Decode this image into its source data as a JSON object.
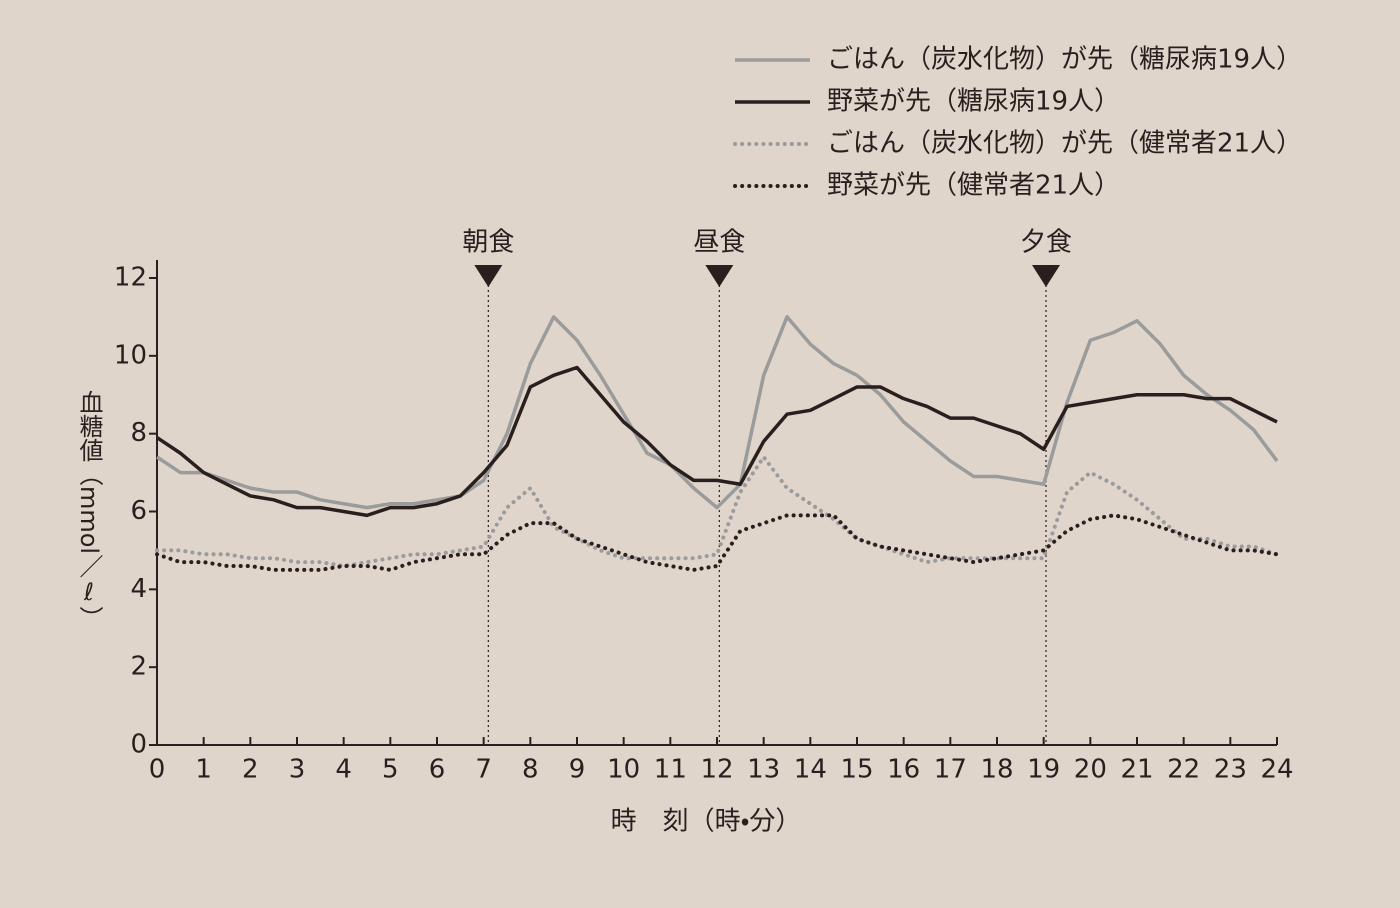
{
  "chart_data": {
    "type": "line",
    "x_label": "時　刻（時・分）",
    "y_label": "血糖値（mmol／ℓ）",
    "x": [
      0,
      0.5,
      1,
      1.5,
      2,
      2.5,
      3,
      3.5,
      4,
      4.5,
      5,
      5.5,
      6,
      6.5,
      7,
      7.5,
      8,
      8.5,
      9,
      9.5,
      10,
      10.5,
      11,
      11.5,
      12,
      12.5,
      13,
      13.5,
      14,
      14.5,
      15,
      15.5,
      16,
      16.5,
      17,
      17.5,
      18,
      18.5,
      19,
      19.5,
      20,
      20.5,
      21,
      21.5,
      22,
      22.5,
      23,
      23.5,
      24
    ],
    "xlim": [
      0,
      24
    ],
    "xticks": [
      0,
      1,
      2,
      3,
      4,
      5,
      6,
      7,
      8,
      9,
      10,
      11,
      12,
      13,
      14,
      15,
      16,
      17,
      18,
      19,
      20,
      21,
      22,
      23,
      24
    ],
    "ylim": [
      0,
      12
    ],
    "yticks": [
      0,
      2,
      4,
      6,
      8,
      10,
      12
    ],
    "legend": "top-right",
    "annotations": [
      {
        "x": 7.1,
        "label": "朝食"
      },
      {
        "x": 12.05,
        "label": "昼食"
      },
      {
        "x": 19.05,
        "label": "夕食"
      }
    ],
    "series": [
      {
        "name": "ごはん（炭水化物）が先（糖尿病19人）",
        "color": "#9a9b9b",
        "style": "solid",
        "values": [
          7.4,
          7.0,
          7.0,
          6.8,
          6.6,
          6.5,
          6.5,
          6.3,
          6.2,
          6.1,
          6.2,
          6.2,
          6.3,
          6.4,
          6.8,
          8.0,
          9.8,
          11.0,
          10.4,
          9.5,
          8.5,
          7.5,
          7.2,
          6.6,
          6.1,
          6.7,
          9.5,
          11.0,
          10.3,
          9.8,
          9.5,
          9.0,
          8.3,
          7.8,
          7.3,
          6.9,
          6.9,
          6.8,
          6.7,
          8.8,
          10.4,
          10.6,
          10.9,
          10.3,
          9.5,
          9.0,
          8.6,
          8.1,
          7.3
        ]
      },
      {
        "name": "野菜が先（糖尿病19人）",
        "color": "#2a1f1f",
        "style": "solid",
        "values": [
          7.9,
          7.5,
          7.0,
          6.7,
          6.4,
          6.3,
          6.1,
          6.1,
          6.0,
          5.9,
          6.1,
          6.1,
          6.2,
          6.4,
          7.0,
          7.7,
          9.2,
          9.5,
          9.7,
          9.0,
          8.3,
          7.8,
          7.2,
          6.8,
          6.8,
          6.7,
          7.8,
          8.5,
          8.6,
          8.9,
          9.2,
          9.2,
          8.9,
          8.7,
          8.4,
          8.4,
          8.2,
          8.0,
          7.6,
          8.7,
          8.8,
          8.9,
          9.0,
          9.0,
          9.0,
          8.9,
          8.9,
          8.6,
          8.3
        ]
      },
      {
        "name": "ごはん（炭水化物）が先（健常者21人）",
        "color": "#9a9b9b",
        "style": "dotted",
        "values": [
          5.0,
          5.0,
          4.9,
          4.9,
          4.8,
          4.8,
          4.7,
          4.7,
          4.6,
          4.7,
          4.8,
          4.9,
          4.9,
          5.0,
          5.1,
          6.1,
          6.6,
          5.6,
          5.3,
          5.0,
          4.8,
          4.8,
          4.8,
          4.8,
          4.9,
          6.5,
          7.4,
          6.6,
          6.2,
          5.8,
          5.3,
          5.1,
          4.9,
          4.7,
          4.8,
          4.8,
          4.8,
          4.8,
          4.8,
          6.5,
          7.0,
          6.7,
          6.3,
          5.8,
          5.3,
          5.3,
          5.1,
          5.1,
          4.9
        ]
      },
      {
        "name": "野菜が先（健常者21人）",
        "color": "#2a1f1f",
        "style": "dotted",
        "values": [
          4.9,
          4.7,
          4.7,
          4.6,
          4.6,
          4.5,
          4.5,
          4.5,
          4.6,
          4.6,
          4.5,
          4.7,
          4.8,
          4.9,
          4.9,
          5.4,
          5.7,
          5.7,
          5.3,
          5.1,
          4.9,
          4.7,
          4.6,
          4.5,
          4.6,
          5.5,
          5.7,
          5.9,
          5.9,
          5.9,
          5.3,
          5.1,
          5.0,
          4.9,
          4.8,
          4.7,
          4.8,
          4.9,
          5.0,
          5.5,
          5.8,
          5.9,
          5.8,
          5.6,
          5.4,
          5.2,
          5.0,
          5.0,
          4.9
        ]
      }
    ]
  }
}
